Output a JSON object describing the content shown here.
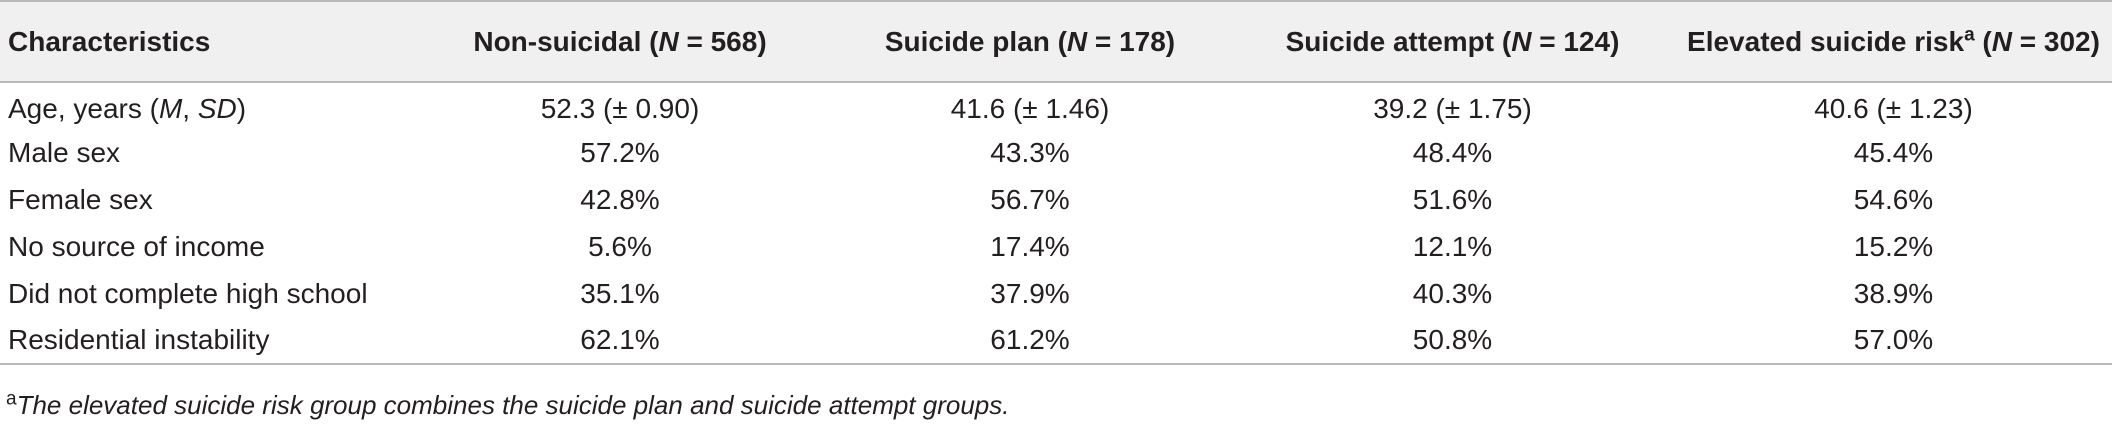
{
  "header": {
    "characteristics": "Characteristics",
    "cols": [
      {
        "label": "Non-suicidal",
        "n_prefix": "N",
        "n_value": " = 568)"
      },
      {
        "label": "Suicide plan",
        "n_prefix": "N",
        "n_value": " = 178)"
      },
      {
        "label": "Suicide attempt",
        "n_prefix": "N",
        "n_value": " = 124)"
      },
      {
        "label": "Elevated suicide risk",
        "sup": "a",
        "n_prefix": "N",
        "n_value": " = 302)"
      }
    ]
  },
  "rows": [
    {
      "label_parts": [
        "Age, years (",
        "M",
        ", ",
        "SD",
        ")"
      ],
      "values": [
        "52.3 (± 0.90)",
        "41.6 (± 1.46)",
        "39.2 (± 1.75)",
        "40.6 (± 1.23)"
      ]
    },
    {
      "label": "Male sex",
      "values": [
        "57.2%",
        "43.3%",
        "48.4%",
        "45.4%"
      ]
    },
    {
      "label": "Female sex",
      "values": [
        "42.8%",
        "56.7%",
        "51.6%",
        "54.6%"
      ]
    },
    {
      "label": "No source of income",
      "values": [
        "5.6%",
        "17.4%",
        "12.1%",
        "15.2%"
      ]
    },
    {
      "label": "Did not complete high school",
      "values": [
        "35.1%",
        "37.9%",
        "40.3%",
        "38.9%"
      ]
    },
    {
      "label": "Residential instability",
      "values": [
        "62.1%",
        "61.2%",
        "50.8%",
        "57.0%"
      ]
    }
  ],
  "footnote": {
    "marker": "a",
    "text": "The elevated suicide risk group combines the suicide plan and suicide attempt groups."
  }
}
